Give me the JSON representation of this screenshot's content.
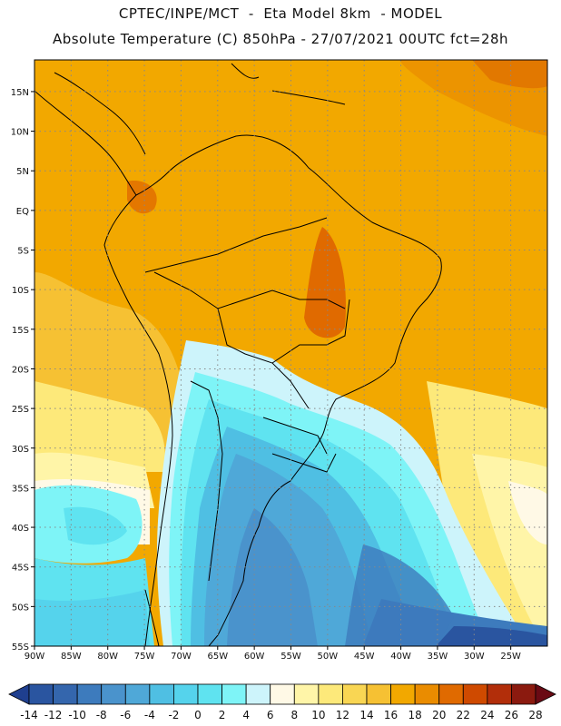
{
  "header": {
    "line1": "CPTEC/INPE/MCT  -  Eta Model 8km  - MODEL",
    "line2": "Absolute Temperature (C) 850hPa - 27/07/2021 00UTC fct=28h"
  },
  "map": {
    "lon_range": [
      -90,
      -20
    ],
    "lat_range": [
      -55,
      19
    ],
    "lat_labels": [
      "15N",
      "10N",
      "5N",
      "EQ",
      "5S",
      "10S",
      "15S",
      "20S",
      "25S",
      "30S",
      "35S",
      "40S",
      "45S",
      "50S",
      "55S"
    ],
    "lon_labels": [
      "90W",
      "85W",
      "80W",
      "75W",
      "70W",
      "65W",
      "60W",
      "55W",
      "50W",
      "45W",
      "40W",
      "35W",
      "30W",
      "25W"
    ],
    "grid": true
  },
  "colorbar": {
    "labels": [
      "-14",
      "-12",
      "-10",
      "-8",
      "-6",
      "-4",
      "-2",
      "0",
      "2",
      "4",
      "6",
      "8",
      "10",
      "12",
      "14",
      "16",
      "18",
      "20",
      "22",
      "24",
      "26",
      "28"
    ],
    "colors": [
      "#1f3f8f",
      "#2a55a0",
      "#3466ad",
      "#3d7bbd",
      "#4a93cc",
      "#4fa8d8",
      "#4fbfe3",
      "#55d3ec",
      "#5fe3f0",
      "#7ef4f7",
      "#cdf4fb",
      "#fff9e6",
      "#fff5a8",
      "#fde97a",
      "#f9d653",
      "#f6c133",
      "#f2a800",
      "#ea8c00",
      "#e06a00",
      "#cf4a00",
      "#b22e0a",
      "#8b1a0f",
      "#6a0a14"
    ]
  }
}
